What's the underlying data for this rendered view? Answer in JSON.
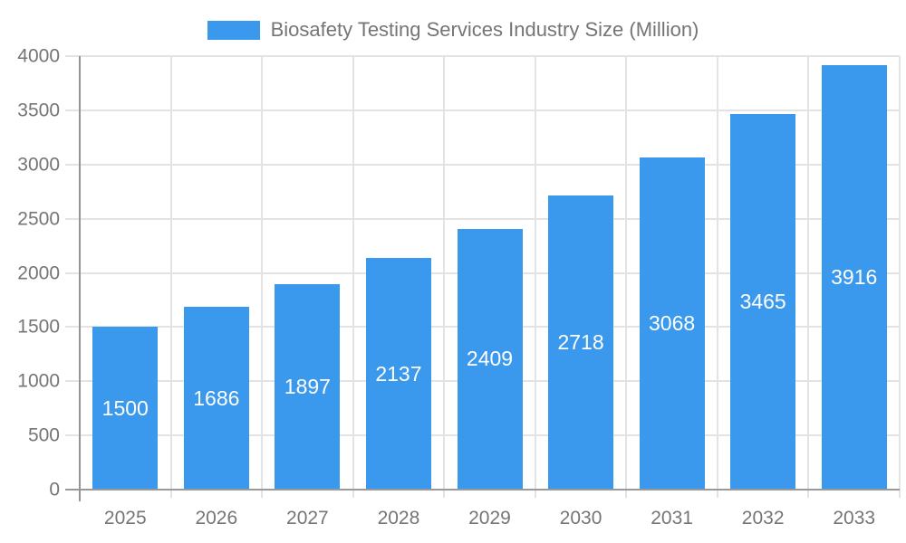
{
  "chart_data": {
    "type": "bar",
    "title": "Biosafety Testing Services Industry Size (Million)",
    "categories": [
      "2025",
      "2026",
      "2027",
      "2028",
      "2029",
      "2030",
      "2031",
      "2032",
      "2033"
    ],
    "values": [
      1500,
      1686,
      1897,
      2137,
      2409,
      2718,
      3068,
      3465,
      3916
    ],
    "xlabel": "",
    "ylabel": "",
    "ylim": [
      0,
      4000
    ],
    "y_ticks": [
      0,
      500,
      1000,
      1500,
      2000,
      2500,
      3000,
      3500,
      4000
    ],
    "grid": "on",
    "legend_position": "top-center",
    "bar_labels_inside": true
  },
  "colors": {
    "bar": "#3A99EC",
    "bar_label": "#FFFFFF",
    "axis_text": "#757575",
    "grid_line": "#E3E3E3",
    "axis_line": "#999999",
    "background": "#FFFFFF"
  }
}
